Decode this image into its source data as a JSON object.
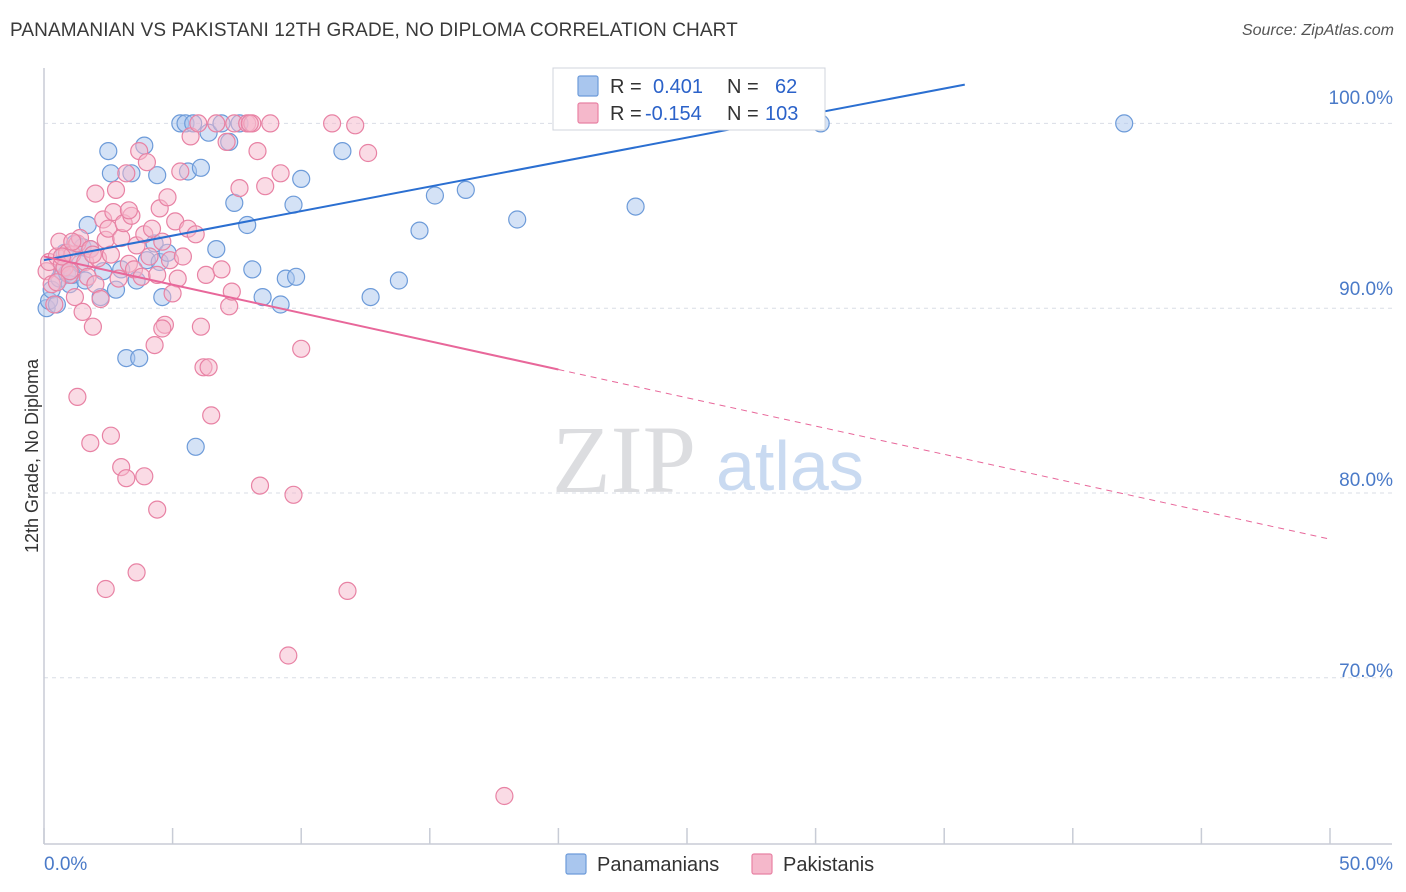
{
  "title": "PANAMANIAN VS PAKISTANI 12TH GRADE, NO DIPLOMA CORRELATION CHART",
  "source": "Source: ZipAtlas.com",
  "watermark": {
    "zip": "ZIP",
    "atlas": "atlas"
  },
  "legend_box": {
    "rows": [
      {
        "r_label": "R =",
        "r_value": "0.401",
        "n_label": "N =",
        "n_value": "62"
      },
      {
        "r_label": "R =",
        "r_value": "-0.154",
        "n_label": "N =",
        "n_value": "103"
      }
    ]
  },
  "bottom_legend": [
    "Panamanians",
    "Pakistanis"
  ],
  "colors": {
    "blue_fill": "#a9c6ee",
    "blue_stroke": "#6d9bd9",
    "blue_line": "#2b6fd1",
    "pink_fill": "#f5b8cb",
    "pink_stroke": "#e882a4",
    "pink_line": "#e8679a",
    "grid": "#d9dde6",
    "axis_text": "#4a7ac8"
  },
  "chart_data": {
    "type": "scatter",
    "title": "PANAMANIAN VS PAKISTANI 12TH GRADE, NO DIPLOMA CORRELATION CHART",
    "xlabel": "",
    "ylabel": "12th Grade, No Diploma",
    "xlim": [
      0,
      50
    ],
    "ylim": [
      61,
      103
    ],
    "x_ticks": [
      0,
      5,
      10,
      15,
      20,
      25,
      30,
      35,
      40,
      45,
      50
    ],
    "x_tick_labels": {
      "0": "0.0%",
      "50": "50.0%"
    },
    "y_ticks": [
      100,
      90,
      80,
      70
    ],
    "y_tick_labels": [
      "100.0%",
      "90.0%",
      "80.0%",
      "70.0%"
    ],
    "series": [
      {
        "name": "Panamanians",
        "r": 0.401,
        "n": 62,
        "trend": {
          "x0": 0,
          "y0": 92.6,
          "x1": 35.8,
          "y1": 102.1,
          "dashed_from": null
        },
        "points": [
          [
            0.1,
            90.0
          ],
          [
            0.2,
            90.4
          ],
          [
            0.3,
            91.0
          ],
          [
            0.5,
            90.2
          ],
          [
            0.6,
            91.6
          ],
          [
            0.7,
            92.0
          ],
          [
            0.8,
            93.0
          ],
          [
            0.9,
            91.9
          ],
          [
            1.0,
            91.3
          ],
          [
            1.1,
            91.8
          ],
          [
            1.2,
            93.5
          ],
          [
            1.4,
            92.4
          ],
          [
            1.5,
            93.3
          ],
          [
            1.6,
            91.5
          ],
          [
            1.7,
            94.5
          ],
          [
            1.8,
            93.2
          ],
          [
            2.2,
            90.6
          ],
          [
            2.3,
            92.0
          ],
          [
            2.5,
            98.5
          ],
          [
            2.6,
            97.3
          ],
          [
            2.8,
            91.0
          ],
          [
            3.0,
            92.1
          ],
          [
            3.2,
            87.3
          ],
          [
            3.4,
            97.3
          ],
          [
            3.6,
            91.5
          ],
          [
            3.7,
            87.3
          ],
          [
            3.9,
            98.8
          ],
          [
            4.0,
            92.6
          ],
          [
            4.3,
            93.5
          ],
          [
            4.4,
            97.2
          ],
          [
            4.5,
            92.5
          ],
          [
            4.6,
            90.6
          ],
          [
            4.8,
            93.0
          ],
          [
            5.3,
            100.0
          ],
          [
            5.5,
            100.0
          ],
          [
            5.6,
            97.4
          ],
          [
            5.8,
            100.0
          ],
          [
            5.9,
            82.5
          ],
          [
            6.1,
            97.6
          ],
          [
            6.4,
            99.5
          ],
          [
            6.7,
            93.2
          ],
          [
            6.9,
            100.0
          ],
          [
            7.2,
            99.0
          ],
          [
            7.4,
            95.7
          ],
          [
            7.6,
            100.0
          ],
          [
            7.9,
            94.5
          ],
          [
            8.1,
            92.1
          ],
          [
            8.5,
            90.6
          ],
          [
            9.2,
            90.2
          ],
          [
            9.4,
            91.6
          ],
          [
            9.7,
            95.6
          ],
          [
            9.8,
            91.7
          ],
          [
            10.0,
            97.0
          ],
          [
            11.6,
            98.5
          ],
          [
            12.7,
            90.6
          ],
          [
            13.8,
            91.5
          ],
          [
            14.6,
            94.2
          ],
          [
            15.2,
            96.1
          ],
          [
            16.4,
            96.4
          ],
          [
            18.4,
            94.8
          ],
          [
            23.0,
            95.5
          ],
          [
            30.2,
            100.0
          ],
          [
            42.0,
            100.0
          ]
        ]
      },
      {
        "name": "Pakistanis",
        "r": -0.154,
        "n": 103,
        "trend": {
          "x0": 0,
          "y0": 92.8,
          "x1": 50,
          "y1": 77.5,
          "dashed_from": 20.0
        },
        "points": [
          [
            0.1,
            92.0
          ],
          [
            0.2,
            92.5
          ],
          [
            0.3,
            91.3
          ],
          [
            0.4,
            90.2
          ],
          [
            0.5,
            92.8
          ],
          [
            0.6,
            93.6
          ],
          [
            0.7,
            92.4
          ],
          [
            0.8,
            92.2
          ],
          [
            0.9,
            93.0
          ],
          [
            1.0,
            91.8
          ],
          [
            1.1,
            92.9
          ],
          [
            1.2,
            90.6
          ],
          [
            1.3,
            93.5
          ],
          [
            1.4,
            93.8
          ],
          [
            1.5,
            89.8
          ],
          [
            1.6,
            92.5
          ],
          [
            1.7,
            91.7
          ],
          [
            1.8,
            93.2
          ],
          [
            1.9,
            89.0
          ],
          [
            2.0,
            91.3
          ],
          [
            2.1,
            92.7
          ],
          [
            2.2,
            90.5
          ],
          [
            2.3,
            94.8
          ],
          [
            2.4,
            93.7
          ],
          [
            2.5,
            94.3
          ],
          [
            2.6,
            92.9
          ],
          [
            2.7,
            95.2
          ],
          [
            2.8,
            96.4
          ],
          [
            2.9,
            91.6
          ],
          [
            3.0,
            93.8
          ],
          [
            3.1,
            94.6
          ],
          [
            3.2,
            97.3
          ],
          [
            3.3,
            92.4
          ],
          [
            3.4,
            95.0
          ],
          [
            3.5,
            92.1
          ],
          [
            3.6,
            93.4
          ],
          [
            3.7,
            98.5
          ],
          [
            3.8,
            91.7
          ],
          [
            3.9,
            94.0
          ],
          [
            4.0,
            97.9
          ],
          [
            4.1,
            92.8
          ],
          [
            4.2,
            94.3
          ],
          [
            4.3,
            88.0
          ],
          [
            4.4,
            91.8
          ],
          [
            4.5,
            95.4
          ],
          [
            4.6,
            93.6
          ],
          [
            4.7,
            89.1
          ],
          [
            4.8,
            96.0
          ],
          [
            4.9,
            92.6
          ],
          [
            5.1,
            94.7
          ],
          [
            5.2,
            91.6
          ],
          [
            5.3,
            97.4
          ],
          [
            5.4,
            92.8
          ],
          [
            5.6,
            94.3
          ],
          [
            5.7,
            99.3
          ],
          [
            5.9,
            94.0
          ],
          [
            6.1,
            89.0
          ],
          [
            6.2,
            86.8
          ],
          [
            6.3,
            91.8
          ],
          [
            6.5,
            84.2
          ],
          [
            6.7,
            100.0
          ],
          [
            6.9,
            92.1
          ],
          [
            7.1,
            99.0
          ],
          [
            7.2,
            90.1
          ],
          [
            7.4,
            100.0
          ],
          [
            7.6,
            96.5
          ],
          [
            7.9,
            100.0
          ],
          [
            8.1,
            100.0
          ],
          [
            8.3,
            98.5
          ],
          [
            8.4,
            80.4
          ],
          [
            8.6,
            96.6
          ],
          [
            8.8,
            100.0
          ],
          [
            9.2,
            97.3
          ],
          [
            9.5,
            71.2
          ],
          [
            9.7,
            79.9
          ],
          [
            10.0,
            87.8
          ],
          [
            11.2,
            100.0
          ],
          [
            11.8,
            74.7
          ],
          [
            12.1,
            99.9
          ],
          [
            12.6,
            98.4
          ],
          [
            1.3,
            85.2
          ],
          [
            1.8,
            82.7
          ],
          [
            2.4,
            74.8
          ],
          [
            2.6,
            83.1
          ],
          [
            3.0,
            81.4
          ],
          [
            3.2,
            80.8
          ],
          [
            3.6,
            75.7
          ],
          [
            3.9,
            80.9
          ],
          [
            4.4,
            79.1
          ],
          [
            4.6,
            88.9
          ],
          [
            5.0,
            90.8
          ],
          [
            6.4,
            86.8
          ],
          [
            7.3,
            90.9
          ],
          [
            2.0,
            96.2
          ],
          [
            1.1,
            93.6
          ],
          [
            0.5,
            91.4
          ],
          [
            0.7,
            92.8
          ],
          [
            1.9,
            92.9
          ],
          [
            3.3,
            95.3
          ],
          [
            6.0,
            100.0
          ],
          [
            8.0,
            100.0
          ],
          [
            17.9,
            63.6
          ],
          [
            1.0,
            92.0
          ]
        ]
      }
    ]
  }
}
